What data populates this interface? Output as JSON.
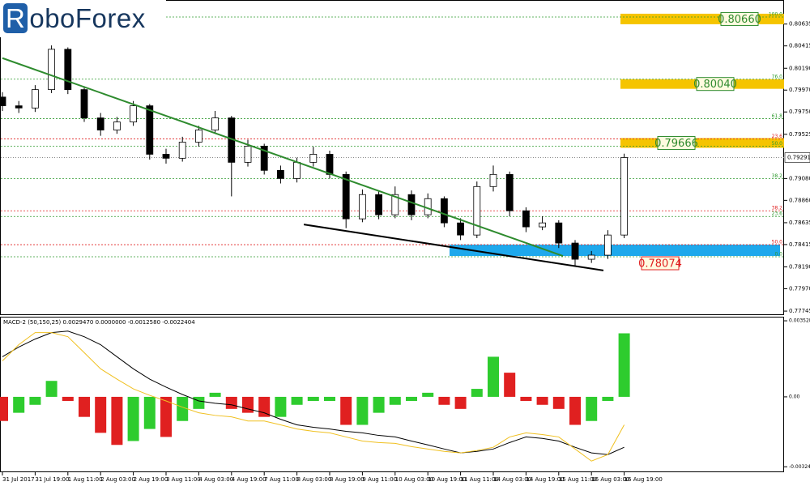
{
  "header": {
    "logo": "RoboForex"
  },
  "chart_data": {
    "type": "candlestick",
    "xtick_labels": [
      "31 Jul 2017",
      "31 Jul 19:00",
      "1 Aug 11:00",
      "2 Aug 03:00",
      "2 Aug 19:00",
      "3 Aug 11:00",
      "4 Aug 03:00",
      "4 Aug 19:00",
      "7 Aug 11:00",
      "8 Aug 03:00",
      "8 Aug 19:00",
      "9 Aug 11:00",
      "10 Aug 03:00",
      "10 Aug 19:00",
      "11 Aug 11:00",
      "14 Aug 03:00",
      "14 Aug 19:00",
      "15 Aug 11:00",
      "16 Aug 03:00",
      "16 Aug 19:00"
    ],
    "open": [
      0.799,
      0.79812,
      0.7979,
      0.79975,
      0.80381,
      0.79975,
      0.7969,
      0.79568,
      0.79649,
      0.79812,
      0.79324,
      0.79284,
      0.79446,
      0.79568,
      0.7969,
      0.79243,
      0.79406,
      0.79162,
      0.7908,
      0.79243,
      0.79324,
      0.79121,
      0.78674,
      0.78918,
      0.78715,
      0.78918,
      0.78715,
      0.78877,
      0.78633,
      0.78511,
      0.78999,
      0.79121,
      0.78755,
      0.78593,
      0.78633,
      0.7843,
      0.78267,
      0.78308,
      0.78511
    ],
    "high": [
      0.7995,
      0.7986,
      0.8002,
      0.8042,
      0.804,
      0.8001,
      0.7974,
      0.797,
      0.7986,
      0.7983,
      0.7938,
      0.795,
      0.7961,
      0.7976,
      0.7971,
      0.7947,
      0.7943,
      0.7921,
      0.7929,
      0.794,
      0.7936,
      0.7915,
      0.7897,
      0.7895,
      0.79,
      0.7896,
      0.7893,
      0.789,
      0.7868,
      0.7905,
      0.7921,
      0.7915,
      0.7879,
      0.787,
      0.7866,
      0.7846,
      0.7835,
      0.7856,
      0.7933
    ],
    "low": [
      0.7976,
      0.7974,
      0.7975,
      0.7994,
      0.7993,
      0.7965,
      0.7951,
      0.7953,
      0.7961,
      0.7927,
      0.7923,
      0.7925,
      0.794,
      0.7953,
      0.789,
      0.792,
      0.7912,
      0.7903,
      0.7904,
      0.792,
      0.7908,
      0.7858,
      0.7864,
      0.7867,
      0.7868,
      0.7866,
      0.7868,
      0.7859,
      0.7846,
      0.7848,
      0.7895,
      0.787,
      0.7854,
      0.7856,
      0.7838,
      0.782,
      0.7823,
      0.7827,
      0.7848
    ],
    "close": [
      0.79812,
      0.7979,
      0.79975,
      0.80381,
      0.79975,
      0.7969,
      0.79568,
      0.79649,
      0.79812,
      0.79324,
      0.79284,
      0.79446,
      0.79568,
      0.7969,
      0.79243,
      0.79406,
      0.79162,
      0.7908,
      0.79243,
      0.79324,
      0.79121,
      0.78674,
      0.78918,
      0.78715,
      0.78918,
      0.78715,
      0.78877,
      0.78633,
      0.78511,
      0.78999,
      0.79121,
      0.78755,
      0.78593,
      0.78633,
      0.7843,
      0.78267,
      0.78308,
      0.78511,
      0.79291
    ],
    "ylim": [
      0.77713,
      0.80869
    ],
    "yticks": [
      0.80635,
      0.80415,
      {
        "value": 0.8019,
        "label": "0.80190"
      },
      {
        "value": 0.7997,
        "label": "0.79970"
      },
      {
        "value": 0.7975,
        "label": "0.79750"
      },
      0.79525,
      {
        "value": 0.7908,
        "label": "0.79080"
      },
      {
        "value": 0.7886,
        "label": "0.78860"
      },
      0.78635,
      0.78415,
      {
        "value": 0.7819,
        "label": "0.78190"
      },
      {
        "value": 0.7797,
        "label": "0.77970"
      },
      0.77745
    ],
    "current_price": 0.79291,
    "levels": [
      {
        "label": "100.0",
        "price": 0.80706,
        "color": "#2e9a2e"
      },
      {
        "label": "76.0",
        "price": 0.8008,
        "color": "#2e9a2e"
      },
      {
        "label": "61.8",
        "price": 0.79682,
        "color": "#2e9a2e"
      },
      {
        "label": "23.6",
        "price": 0.79479,
        "color": "#e02020"
      },
      {
        "label": "50.0",
        "price": 0.79406,
        "color": "#2e9a2e"
      },
      {
        "label": "38.2",
        "price": 0.7908,
        "color": "#2e9a2e"
      },
      {
        "label": "38.2",
        "price": 0.78755,
        "color": "#e02020"
      },
      {
        "label": "23.6",
        "price": 0.78698,
        "color": "#2e9a2e"
      },
      {
        "label": "50.0",
        "price": 0.78414,
        "color": "#e02020"
      },
      {
        "label": "0.0",
        "price": 0.78292,
        "color": "#2e9a2e"
      }
    ],
    "zones": [
      {
        "label": "0.80660",
        "low": 0.80633,
        "high": 0.80739,
        "color": "#f5c400",
        "label_color": "#2e8b2e"
      },
      {
        "label": "0.80040",
        "low": 0.79983,
        "high": 0.8008,
        "color": "#f5c400",
        "label_color": "#2e8b2e"
      },
      {
        "label": "0.79666",
        "low": 0.79389,
        "high": 0.79487,
        "color": "#f5c400",
        "label_color": "#2e8b2e"
      },
      {
        "label": "0.78074",
        "low": 0.783,
        "high": 0.78414,
        "color": "#1ea8ec",
        "label_color": "#e02020"
      }
    ],
    "trendlines": [
      {
        "color": "#2e8b2e",
        "points": [
          [
            0,
            0.80292
          ],
          [
            34.26,
            0.783
          ]
        ]
      },
      {
        "color": "#000000",
        "points": [
          [
            18.42,
            0.78617
          ],
          [
            36.73,
            0.78154
          ]
        ]
      }
    ],
    "macd": {
      "title": "MACD-2 (50,150,25) 0.0029470 0.0000000 -0.0012580 -0.0022404",
      "ylim": [
        -0.00346,
        0.00368
      ],
      "yticks": [
        0.003528,
        {
          "value": 0,
          "label": "0.00"
        },
        -0.003245
      ],
      "up_color": "#2ecc2e",
      "down_color": "#e02020",
      "histogram": [
        -0.00112,
        -0.00074,
        -0.00037,
        0.00074,
        -0.00019,
        -0.00093,
        -0.00167,
        -0.00223,
        -0.00205,
        -0.00149,
        -0.00186,
        -0.00112,
        -0.00056,
        0.00019,
        -0.00056,
        -0.00074,
        -0.00093,
        -0.00093,
        -0.00037,
        -0.00019,
        -0.00019,
        -0.0013,
        -0.0013,
        -0.00074,
        -0.00037,
        -0.00019,
        0.00019,
        -0.00037,
        -0.00056,
        0.00037,
        0.00186,
        0.00112,
        -0.00019,
        -0.00037,
        -0.00056,
        -0.0013,
        -0.00112,
        -0.00019,
        0.002947
      ],
      "series": [
        {
          "color": "#000000",
          "values": [
            0.00186,
            0.00231,
            0.00268,
            0.00298,
            0.00305,
            0.00279,
            0.00242,
            0.00186,
            0.0013,
            0.00082,
            0.00045,
            0.00011,
            -0.00019,
            -0.0003,
            -0.00037,
            -0.00056,
            -0.00074,
            -0.00104,
            -0.0013,
            -0.00141,
            -0.00149,
            -0.0016,
            -0.00167,
            -0.00179,
            -0.00186,
            -0.00205,
            -0.00223,
            -0.00242,
            -0.0026,
            -0.00253,
            -0.00242,
            -0.00212,
            -0.00186,
            -0.00193,
            -0.00205,
            -0.00234,
            -0.0026,
            -0.00268,
            -0.00234
          ]
        },
        {
          "color": "#f0c020",
          "values": [
            0.00167,
            0.00242,
            0.00298,
            0.00298,
            0.00279,
            0.00205,
            0.0013,
            0.00082,
            0.00037,
            7e-05,
            -0.00019,
            -0.00048,
            -0.00074,
            -0.00086,
            -0.00093,
            -0.00112,
            -0.00112,
            -0.0013,
            -0.00149,
            -0.0016,
            -0.00167,
            -0.00186,
            -0.00205,
            -0.00212,
            -0.00216,
            -0.00231,
            -0.00242,
            -0.00253,
            -0.0026,
            -0.00249,
            -0.00234,
            -0.00186,
            -0.00167,
            -0.00175,
            -0.00186,
            -0.00242,
            -0.00298,
            -0.00268,
            -0.0013
          ]
        }
      ]
    }
  }
}
